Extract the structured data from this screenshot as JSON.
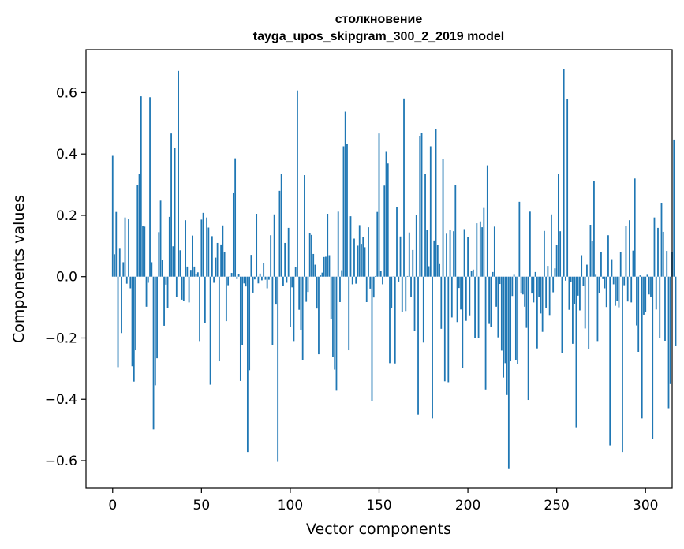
{
  "chart_data": {
    "type": "bar",
    "title": "столкновение",
    "subtitle": "tayga_upos_skipgram_300_2_2019 model",
    "xlabel": "Vector components",
    "ylabel": "Components values",
    "xlim": [
      -15,
      315
    ],
    "ylim": [
      -0.69,
      0.74
    ],
    "x_ticks": [
      0,
      50,
      100,
      150,
      200,
      250,
      300
    ],
    "x_tick_labels": [
      "0",
      "50",
      "100",
      "150",
      "200",
      "250",
      "300"
    ],
    "y_ticks": [
      -0.6,
      -0.4,
      -0.2,
      0.0,
      0.2,
      0.4,
      0.6
    ],
    "y_tick_labels": [
      "−0.6",
      "−0.4",
      "−0.2",
      "0.0",
      "0.2",
      "0.4",
      "0.6"
    ],
    "bar_color": "#1f77b4",
    "grid": false,
    "values": [
      0.394,
      0.073,
      0.211,
      -0.295,
      0.091,
      -0.184,
      0.047,
      0.193,
      -0.023,
      0.187,
      -0.038,
      -0.292,
      -0.342,
      -0.24,
      0.298,
      0.334,
      0.588,
      0.165,
      0.163,
      -0.098,
      -0.02,
      0.585,
      0.047,
      -0.498,
      -0.354,
      -0.266,
      0.145,
      0.248,
      0.054,
      -0.16,
      -0.026,
      -0.101,
      0.195,
      0.467,
      0.099,
      0.42,
      -0.067,
      0.671,
      0.086,
      -0.075,
      -0.078,
      0.184,
      0.033,
      -0.084,
      0.022,
      0.134,
      0.033,
      0.007,
      0.014,
      -0.21,
      0.186,
      0.208,
      -0.15,
      0.193,
      0.16,
      -0.352,
      0.132,
      -0.02,
      0.062,
      0.11,
      -0.276,
      0.105,
      0.167,
      0.08,
      -0.145,
      -0.028,
      0.001,
      0.012,
      0.272,
      0.386,
      -0.008,
      0.008,
      -0.34,
      -0.223,
      -0.022,
      -0.032,
      -0.572,
      -0.305,
      0.071,
      -0.052,
      -0.009,
      0.205,
      -0.022,
      0.01,
      -0.012,
      0.045,
      -0.01,
      -0.038,
      -0.01,
      0.135,
      -0.224,
      0.203,
      -0.091,
      -0.604,
      0.28,
      0.334,
      -0.03,
      0.11,
      -0.02,
      0.159,
      -0.163,
      -0.035,
      -0.21,
      0.031,
      0.607,
      -0.108,
      -0.173,
      -0.272,
      0.331,
      -0.082,
      -0.05,
      0.143,
      0.136,
      0.074,
      0.039,
      -0.104,
      -0.253,
      0.004,
      0.013,
      0.064,
      0.065,
      0.205,
      0.07,
      -0.139,
      -0.262,
      -0.303,
      -0.372,
      0.212,
      -0.083,
      0.021,
      0.425,
      0.538,
      0.433,
      -0.24,
      0.197,
      -0.025,
      0.124,
      -0.023,
      0.101,
      0.168,
      0.107,
      0.128,
      0.096,
      -0.083,
      0.161,
      -0.039,
      -0.407,
      -0.068,
      0.002,
      0.211,
      0.467,
      0.018,
      -0.025,
      0.297,
      0.407,
      0.369,
      -0.282,
      -0.102,
      0.0,
      -0.283,
      0.226,
      -0.016,
      0.131,
      -0.115,
      0.581,
      -0.112,
      0.002,
      0.144,
      -0.067,
      0.087,
      -0.177,
      0.202,
      -0.45,
      0.458,
      0.469,
      -0.215,
      0.335,
      0.152,
      0.034,
      0.425,
      -0.462,
      0.118,
      0.482,
      0.104,
      0.041,
      -0.17,
      0.384,
      -0.341,
      0.14,
      -0.344,
      0.151,
      -0.133,
      0.148,
      0.3,
      -0.148,
      -0.037,
      -0.107,
      -0.298,
      0.155,
      -0.144,
      0.13,
      -0.126,
      0.018,
      0.023,
      -0.201,
      0.174,
      -0.201,
      0.18,
      0.161,
      0.224,
      -0.368,
      0.363,
      -0.154,
      -0.163,
      0.015,
      0.163,
      -0.098,
      -0.198,
      -0.024,
      -0.241,
      -0.329,
      -0.282,
      -0.386,
      -0.625,
      -0.276,
      -0.063,
      0.006,
      -0.273,
      -0.285,
      0.244,
      -0.055,
      -0.058,
      -0.098,
      -0.167,
      -0.402,
      0.212,
      -0.055,
      -0.084,
      0.015,
      -0.234,
      -0.066,
      -0.12,
      -0.18,
      0.149,
      -0.102,
      0.035,
      -0.125,
      0.203,
      -0.051,
      0.027,
      0.104,
      0.335,
      0.148,
      -0.249,
      0.676,
      -0.013,
      0.58,
      -0.108,
      -0.018,
      -0.219,
      -0.09,
      -0.491,
      -0.062,
      -0.11,
      0.07,
      -0.029,
      -0.169,
      0.039,
      -0.237,
      0.169,
      0.116,
      0.313,
      0.006,
      -0.21,
      -0.054,
      0.081,
      -0.008,
      -0.038,
      -0.099,
      0.135,
      -0.55,
      0.057,
      -0.025,
      -0.095,
      -0.08,
      -0.1,
      0.081,
      -0.572,
      -0.028,
      0.165,
      -0.081,
      0.184,
      -0.084,
      0.085,
      0.32,
      -0.159,
      -0.245,
      0.004,
      -0.462,
      -0.124,
      -0.114,
      0.006,
      -0.058,
      -0.067,
      -0.528,
      0.193,
      -0.107,
      0.159,
      -0.201,
      0.241,
      0.146,
      -0.209,
      0.084,
      -0.429,
      -0.35,
      0.08,
      0.447,
      -0.227
    ]
  }
}
